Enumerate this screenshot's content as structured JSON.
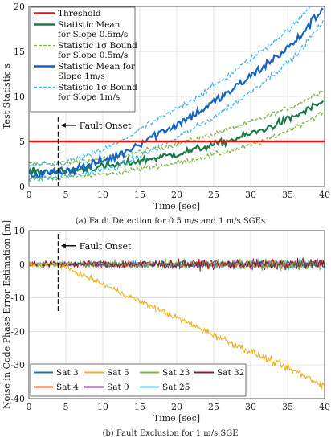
{
  "chart_data": [
    {
      "type": "line",
      "xlabel": "Time [sec]",
      "ylabel": "Test Statistic s",
      "xlim": [
        0,
        40
      ],
      "ylim": [
        0,
        20
      ],
      "xticks": [
        0,
        5,
        10,
        15,
        20,
        25,
        30,
        35,
        40
      ],
      "yticks": [
        0,
        5,
        10,
        15,
        20
      ],
      "grid": true,
      "legend_position": "top-left",
      "threshold": 5,
      "fault_onset_time": 4,
      "annotation": "Fault Onset",
      "caption": "(a)  Fault Detection for 0.5 m/s and 1 m/s SGEs",
      "series": [
        {
          "name": "Threshold",
          "color": "#e8120c",
          "style": "solid",
          "x": [
            0,
            40
          ],
          "y": [
            5,
            5
          ]
        },
        {
          "name": "Statistic Mean for Slope 0.5m/s",
          "color": "#1a7a45",
          "style": "solid",
          "x": [
            0,
            4,
            8,
            12,
            16,
            20,
            24,
            28,
            32,
            36,
            40
          ],
          "y": [
            1.6,
            1.7,
            2.0,
            2.4,
            3.0,
            3.6,
            4.4,
            5.3,
            6.4,
            7.8,
            9.5
          ]
        },
        {
          "name": "Statistic 1σ Bound for Slope 0.5m/s",
          "color": "#7cb342",
          "style": "dashed",
          "x": [
            0,
            4,
            8,
            12,
            16,
            20,
            24,
            28,
            32,
            36,
            40
          ],
          "y": [
            2.5,
            2.6,
            2.9,
            3.3,
            4.0,
            4.7,
            5.6,
            6.6,
            7.7,
            9.0,
            10.8
          ]
        },
        {
          "name": "",
          "color": "#7cb342",
          "style": "dashed",
          "x": [
            0,
            4,
            8,
            12,
            16,
            20,
            24,
            28,
            32,
            36,
            40
          ],
          "y": [
            0.9,
            1.0,
            1.2,
            1.5,
            2.1,
            2.6,
            3.3,
            4.1,
            5.1,
            6.6,
            8.3
          ]
        },
        {
          "name": "Statistic Mean for Slope 1m/s",
          "color": "#1565c0",
          "style": "solid",
          "x": [
            0,
            4,
            8,
            12,
            16,
            20,
            24,
            28,
            32,
            36,
            40
          ],
          "y": [
            1.3,
            1.6,
            2.3,
            3.4,
            5.3,
            6.9,
            8.8,
            11.0,
            13.5,
            16.0,
            20.0
          ]
        },
        {
          "name": "Statistic 1σ Bound for Slope 1m/s",
          "color": "#40b4f0",
          "style": "dashed",
          "x": [
            0,
            4,
            8,
            12,
            16,
            20,
            24,
            28,
            32,
            36,
            40
          ],
          "y": [
            2.3,
            2.5,
            3.4,
            4.8,
            6.8,
            8.6,
            10.6,
            12.9,
            15.4,
            18.0,
            22.0
          ]
        },
        {
          "name": "",
          "color": "#40b4f0",
          "style": "dashed",
          "x": [
            0,
            4,
            8,
            12,
            16,
            20,
            24,
            28,
            32,
            36,
            40
          ],
          "y": [
            0.8,
            1.0,
            1.5,
            2.2,
            3.8,
            5.4,
            7.2,
            9.3,
            11.8,
            14.4,
            18.5
          ]
        }
      ]
    },
    {
      "type": "line",
      "xlabel": "Time [sec]",
      "ylabel": "Noise in Code Phase Error Estimation [m]",
      "xlim": [
        0,
        40
      ],
      "ylim": [
        -40,
        10
      ],
      "xticks": [
        0,
        5,
        10,
        15,
        20,
        25,
        30,
        35,
        40
      ],
      "yticks": [
        -40,
        -30,
        -20,
        -10,
        0,
        10
      ],
      "grid": true,
      "legend_position": "bottom-left",
      "fault_onset_time": 4,
      "annotation": "Fault Onset",
      "caption": "(b)  Fault Exclusion for 1 m/s SGE",
      "series": [
        {
          "name": "Sat 3",
          "color": "#1f6fb4",
          "x": [
            0,
            40
          ],
          "y": [
            0,
            0
          ]
        },
        {
          "name": "Sat 5",
          "color": "#f0b020",
          "x": [
            0,
            4,
            10,
            20,
            30,
            40
          ],
          "y": [
            0,
            0,
            -6,
            -16,
            -26,
            -36
          ]
        },
        {
          "name": "Sat 23",
          "color": "#7ab648",
          "x": [
            0,
            40
          ],
          "y": [
            0,
            0
          ]
        },
        {
          "name": "Sat 32",
          "color": "#8c1c2c",
          "x": [
            0,
            40
          ],
          "y": [
            0,
            0
          ]
        },
        {
          "name": "Sat 4",
          "color": "#e8591a",
          "x": [
            0,
            40
          ],
          "y": [
            0,
            0
          ]
        },
        {
          "name": "Sat 9",
          "color": "#7b2d8e",
          "x": [
            0,
            40
          ],
          "y": [
            0,
            0
          ]
        },
        {
          "name": "Sat 25",
          "color": "#4cc3ee",
          "x": [
            0,
            40
          ],
          "y": [
            0,
            0
          ]
        }
      ]
    }
  ]
}
